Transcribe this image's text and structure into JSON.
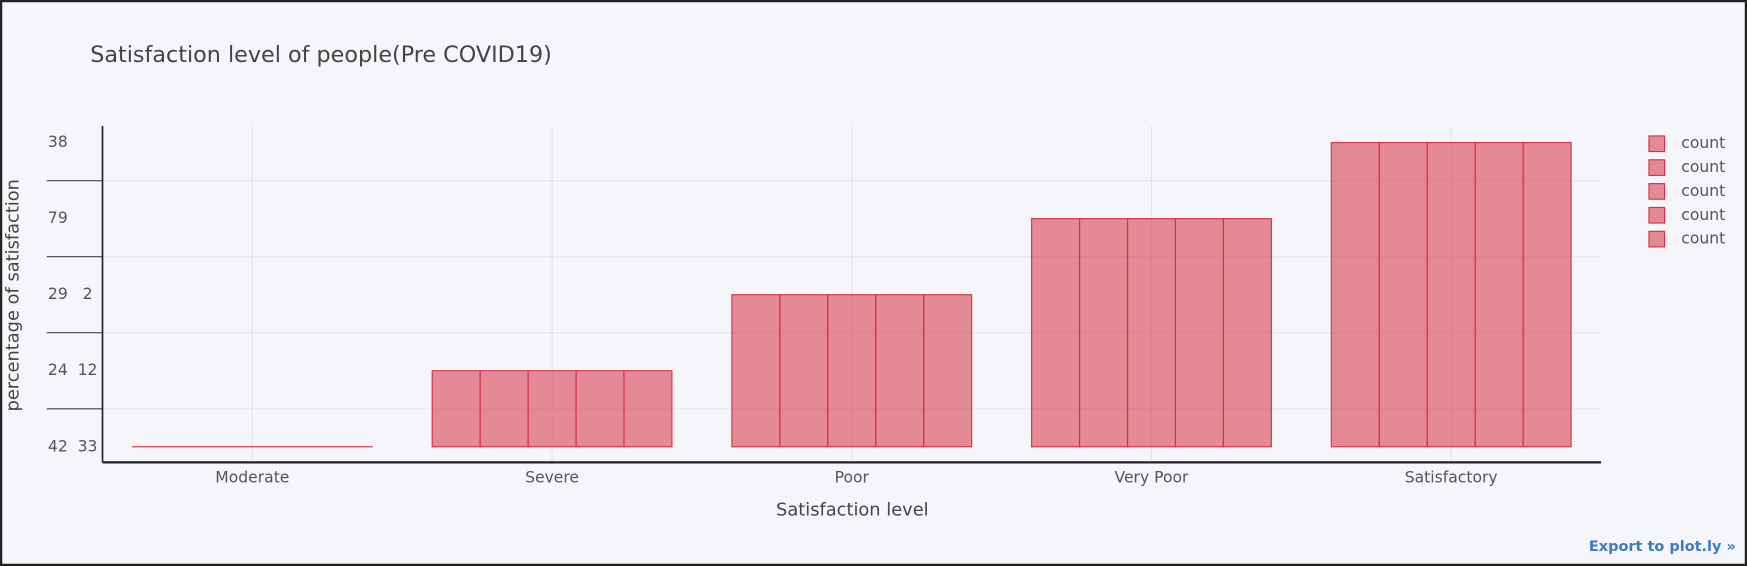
{
  "chart_data": {
    "type": "bar",
    "title": "Satisfaction level of people(Pre COVID19)",
    "x_label": "Satisfaction level",
    "y_label": "percentage of satisfaction",
    "categories": [
      "Moderate",
      "Severe",
      "Poor",
      "Very Poor",
      "Satisfactory"
    ],
    "ycategories": [
      "42  33",
      "24  12",
      "29   2",
      "79",
      "38"
    ],
    "series": [
      {
        "name": "count",
        "color": "#d62f45",
        "values": [
          "42  33",
          "24  12",
          "29   2",
          "79",
          "38"
        ]
      },
      {
        "name": "count",
        "color": "#d62f45",
        "values": [
          "42  33",
          "24  12",
          "29   2",
          "79",
          "38"
        ]
      },
      {
        "name": "count",
        "color": "#d62f45",
        "values": [
          "42  33",
          "24  12",
          "29   2",
          "79",
          "38"
        ]
      },
      {
        "name": "count",
        "color": "#d62f45",
        "values": [
          "42  33",
          "24  12",
          "29   2",
          "79",
          "38"
        ]
      },
      {
        "name": "count",
        "color": "#d62f45",
        "values": [
          "42  33",
          "24  12",
          "29   2",
          "79",
          "38"
        ]
      }
    ],
    "grid": true,
    "legend": "top-right"
  },
  "export_link": "Export to plot.ly »"
}
